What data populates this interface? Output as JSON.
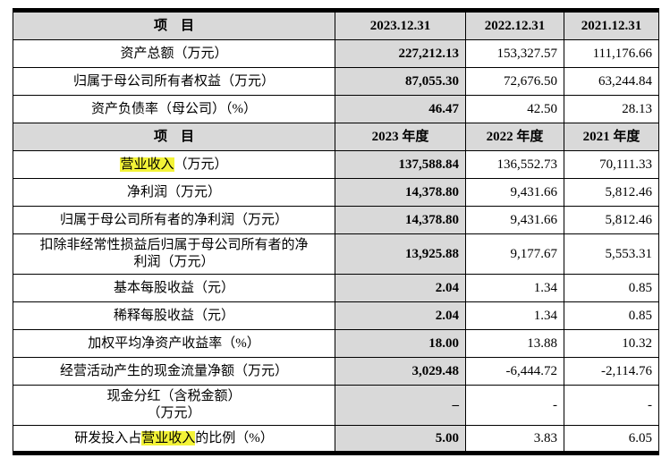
{
  "table": {
    "header1": {
      "item": "项　目",
      "c2023": "2023.12.31",
      "c2022": "2022.12.31",
      "c2021": "2021.12.31"
    },
    "header2": {
      "item": "项　目",
      "c2023": "2023 年度",
      "c2022": "2022 年度",
      "c2021": "2021 年度"
    },
    "total_assets": {
      "label": "资产总额（万元）",
      "v2023": "227,212.13",
      "v2022": "153,327.57",
      "v2021": "111,176.66"
    },
    "parent_equity": {
      "label": "归属于母公司所有者权益（万元）",
      "v2023": "87,055.30",
      "v2022": "72,676.50",
      "v2021": "63,244.84"
    },
    "debt_ratio": {
      "label": "资产负债率（母公司）（%）",
      "v2023": "46.47",
      "v2022": "42.50",
      "v2021": "28.13"
    },
    "revenue": {
      "label_highlight": "营业收入",
      "label_rest": "（万元）",
      "v2023": "137,588.84",
      "v2022": "136,552.73",
      "v2021": "70,111.33"
    },
    "net_profit": {
      "label": "净利润（万元）",
      "v2023": "14,378.80",
      "v2022": "9,431.66",
      "v2021": "5,812.46"
    },
    "parent_net_profit": {
      "label": "归属于母公司所有者的净利润（万元）",
      "v2023": "14,378.80",
      "v2022": "9,431.66",
      "v2021": "5,812.46"
    },
    "deducted_net_profit": {
      "label_line1": "扣除非经常性损益后归属于母公司所有者的净",
      "label_line2": "利润（万元）",
      "v2023": "13,925.88",
      "v2022": "9,177.67",
      "v2021": "5,553.31"
    },
    "basic_eps": {
      "label": "基本每股收益（元）",
      "v2023": "2.04",
      "v2022": "1.34",
      "v2021": "0.85"
    },
    "diluted_eps": {
      "label": "稀释每股收益（元）",
      "v2023": "2.04",
      "v2022": "1.34",
      "v2021": "0.85"
    },
    "roe": {
      "label": "加权平均净资产收益率（%）",
      "v2023": "18.00",
      "v2022": "13.88",
      "v2021": "10.32"
    },
    "operating_cash_flow": {
      "label": "经营活动产生的现金流量净额（万元）",
      "v2023": "3,029.48",
      "v2022": "-6,444.72",
      "v2021": "-2,114.76"
    },
    "cash_dividend": {
      "label_line1": "现金分红（含税金额）",
      "label_line2": "（万元）",
      "v2023": "–",
      "v2022": "-",
      "v2021": "-"
    },
    "rd_ratio": {
      "label_pre": "研发投入占",
      "label_highlight": "营业收入",
      "label_post": "的比例（%）",
      "v2023": "5.00",
      "v2022": "3.83",
      "v2021": "6.05"
    }
  }
}
